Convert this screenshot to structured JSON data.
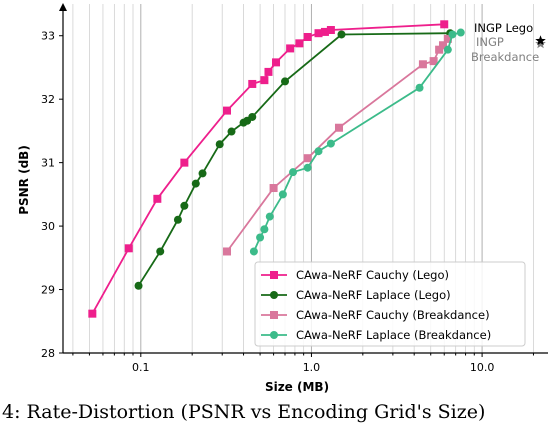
{
  "chart_data": {
    "type": "line",
    "xlabel": "Size (MB)",
    "ylabel": "PSNR (dB)",
    "xscale": "log",
    "xlim": [
      0.035,
      25
    ],
    "ylim": [
      28,
      33.5
    ],
    "xticks": [
      0.1,
      1.0,
      10.0
    ],
    "xtick_labels": [
      "0.1",
      "1.0",
      "10.0"
    ],
    "yticks": [
      28,
      29,
      30,
      31,
      32,
      33
    ],
    "ytick_labels": [
      "28",
      "29",
      "30",
      "31",
      "32",
      "33"
    ],
    "grid": "x-major-and-minor",
    "legend_position": "lower-right",
    "series": [
      {
        "name": "CAwa-NeRF Cauchy (Lego)",
        "color": "#ee1f8c",
        "marker": "square",
        "x": [
          0.052,
          0.085,
          0.125,
          0.18,
          0.32,
          0.45,
          0.53,
          0.56,
          0.62,
          0.75,
          0.85,
          0.95,
          1.1,
          1.2,
          1.3,
          6.0
        ],
        "y": [
          28.62,
          29.65,
          30.43,
          31.0,
          31.82,
          32.24,
          32.3,
          32.43,
          32.58,
          32.8,
          32.88,
          32.98,
          33.04,
          33.06,
          33.09,
          33.18
        ]
      },
      {
        "name": "CAwa-NeRF Laplace (Lego)",
        "color": "#176a17",
        "marker": "circle",
        "x": [
          0.097,
          0.13,
          0.165,
          0.18,
          0.21,
          0.23,
          0.29,
          0.34,
          0.4,
          0.42,
          0.45,
          0.7,
          1.5,
          6.5
        ],
        "y": [
          29.06,
          29.6,
          30.1,
          30.32,
          30.67,
          30.83,
          31.29,
          31.49,
          31.63,
          31.66,
          31.72,
          32.28,
          33.02,
          33.04
        ]
      },
      {
        "name": "CAwa-NeRF Cauchy (Breakdance)",
        "color": "#d9779c",
        "marker": "square",
        "x": [
          0.32,
          0.6,
          0.95,
          1.45,
          4.5,
          5.2,
          5.6,
          5.9,
          6.3
        ],
        "y": [
          29.6,
          30.6,
          31.07,
          31.55,
          32.55,
          32.6,
          32.78,
          32.85,
          32.95
        ]
      },
      {
        "name": "CAwa-NeRF Laplace (Breakdance)",
        "color": "#3cbb8a",
        "marker": "circle",
        "x": [
          0.46,
          0.5,
          0.53,
          0.57,
          0.68,
          0.78,
          0.95,
          1.1,
          1.3,
          4.3,
          6.3,
          6.7,
          7.5
        ],
        "y": [
          29.6,
          29.82,
          29.95,
          30.15,
          30.5,
          30.85,
          30.92,
          31.18,
          31.3,
          32.18,
          32.78,
          33.02,
          33.05
        ]
      }
    ],
    "annotations": [
      {
        "name": "INGP Lego",
        "x": 22,
        "y": 32.92,
        "color": "#000000",
        "marker": "star"
      },
      {
        "name": "INGP\nBreakdance",
        "x": 22,
        "y": 32.92,
        "color": "#808080",
        "marker": "star"
      }
    ]
  },
  "caption": "4: Rate-Distortion (PSNR vs Encoding Grid's Size)"
}
